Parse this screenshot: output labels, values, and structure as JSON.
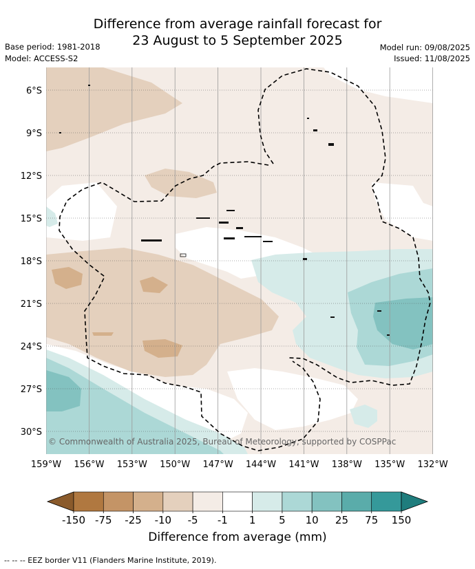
{
  "header": {
    "title_line1": "Difference from average rainfall forecast for",
    "title_line2": "23 August to 5 September 2025",
    "base_period": "Base period: 1981-2018",
    "model": "Model: ACCESS-S2",
    "model_run": "Model run: 09/08/2025",
    "issued": "Issued: 11/08/2025"
  },
  "map": {
    "copyright": "© Commonwealth of Australia 2025, Bureau of Meteorology, supported by COSPPac",
    "lat_labels": [
      "6°S",
      "9°S",
      "12°S",
      "15°S",
      "18°S",
      "21°S",
      "24°S",
      "27°S",
      "30°S"
    ],
    "lon_labels": [
      "159°W",
      "156°W",
      "153°W",
      "150°W",
      "147°W",
      "144°W",
      "141°W",
      "138°W",
      "135°W",
      "132°W"
    ]
  },
  "colorbar": {
    "ticks": [
      "-150",
      "-75",
      "-25",
      "-10",
      "-5",
      "-1",
      "1",
      "5",
      "10",
      "25",
      "75",
      "150"
    ],
    "colors": [
      "#8a5a2b",
      "#b07840",
      "#c49466",
      "#d4b08c",
      "#e4d0bd",
      "#f4ece6",
      "#ffffff",
      "#d6ebe9",
      "#acd8d6",
      "#83c2c0",
      "#5aacaa",
      "#35999a",
      "#1f7d7d"
    ],
    "label": "Difference from average (mm)"
  },
  "footnote": "--  --  -- EEZ border V11 (Flanders Marine Institute, 2019)."
}
